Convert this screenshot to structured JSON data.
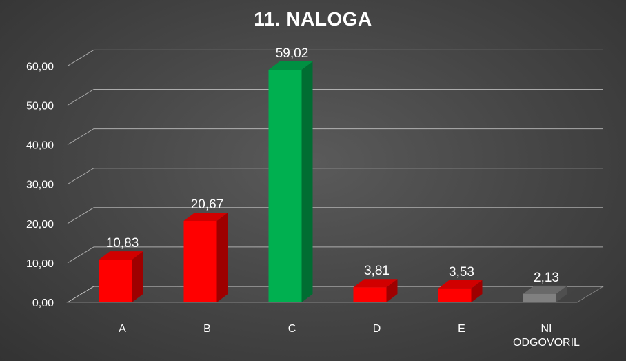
{
  "chart_data": {
    "type": "bar",
    "title": "11. NALOGA",
    "xlabel": "",
    "ylabel": "",
    "categories": [
      "A",
      "B",
      "C",
      "D",
      "E",
      "NI ODGOVORIL"
    ],
    "values": [
      10.83,
      20.67,
      59.02,
      3.81,
      3.53,
      2.13
    ],
    "data_labels": [
      "10,83",
      "20,67",
      "59,02",
      "3,81",
      "3,53",
      "2,13"
    ],
    "y_tick_labels": [
      "0,00",
      "10,00",
      "20,00",
      "30,00",
      "40,00",
      "50,00",
      "60,00"
    ],
    "ylim": [
      0,
      60
    ],
    "grid": true,
    "legend": "none",
    "bar_colors": [
      "#ff0000",
      "#ff0000",
      "#00b050",
      "#ff0000",
      "#ff0000",
      "#808080"
    ],
    "style": "3d-column"
  }
}
